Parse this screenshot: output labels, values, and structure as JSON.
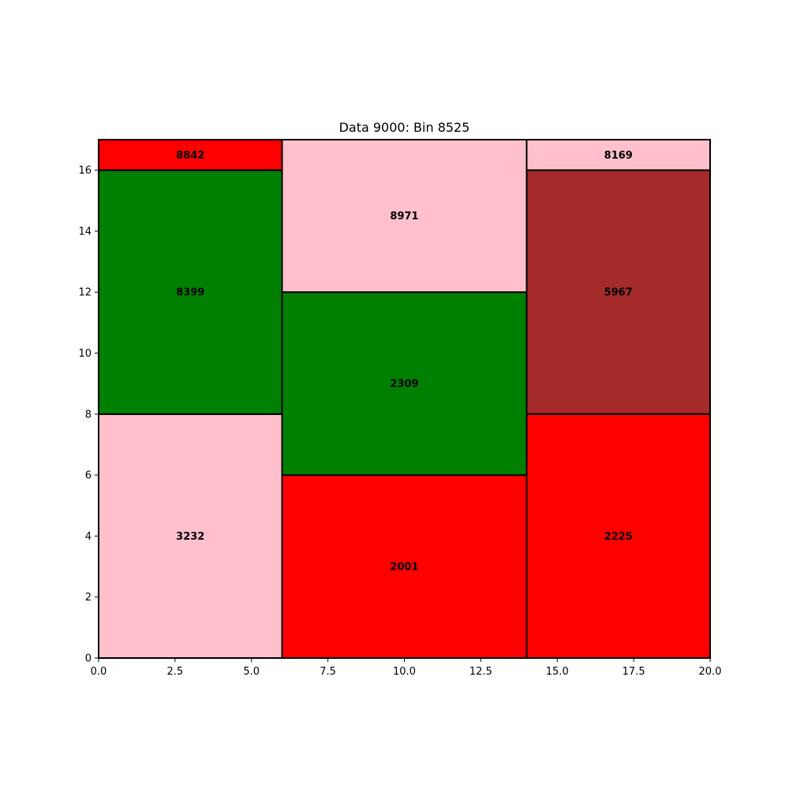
{
  "chart_data": {
    "type": "mosaic",
    "title": "Data 9000: Bin 8525",
    "xlabel": "",
    "ylabel": "",
    "xlim": [
      0,
      20
    ],
    "ylim": [
      0,
      17
    ],
    "xticks": [
      "0.0",
      "2.5",
      "5.0",
      "7.5",
      "10.0",
      "12.5",
      "15.0",
      "17.5",
      "20.0"
    ],
    "yticks": [
      "0",
      "2",
      "4",
      "6",
      "8",
      "10",
      "12",
      "14",
      "16"
    ],
    "grid": false,
    "rects": [
      {
        "label": "3232",
        "x0": 0,
        "x1": 6,
        "y0": 0,
        "y1": 8,
        "color": "#ffc0cb"
      },
      {
        "label": "8399",
        "x0": 0,
        "x1": 6,
        "y0": 8,
        "y1": 16,
        "color": "#008000"
      },
      {
        "label": "8842",
        "x0": 0,
        "x1": 6,
        "y0": 16,
        "y1": 17,
        "color": "#ff0000"
      },
      {
        "label": "2001",
        "x0": 6,
        "x1": 14,
        "y0": 0,
        "y1": 6,
        "color": "#ff0000"
      },
      {
        "label": "2309",
        "x0": 6,
        "x1": 14,
        "y0": 6,
        "y1": 12,
        "color": "#008000"
      },
      {
        "label": "8971",
        "x0": 6,
        "x1": 14,
        "y0": 12,
        "y1": 17,
        "color": "#ffc0cb"
      },
      {
        "label": "2225",
        "x0": 14,
        "x1": 20,
        "y0": 0,
        "y1": 8,
        "color": "#ff0000"
      },
      {
        "label": "5967",
        "x0": 14,
        "x1": 20,
        "y0": 8,
        "y1": 16,
        "color": "#a52a2a"
      },
      {
        "label": "8169",
        "x0": 14,
        "x1": 20,
        "y0": 16,
        "y1": 17,
        "color": "#ffc0cb"
      }
    ]
  }
}
